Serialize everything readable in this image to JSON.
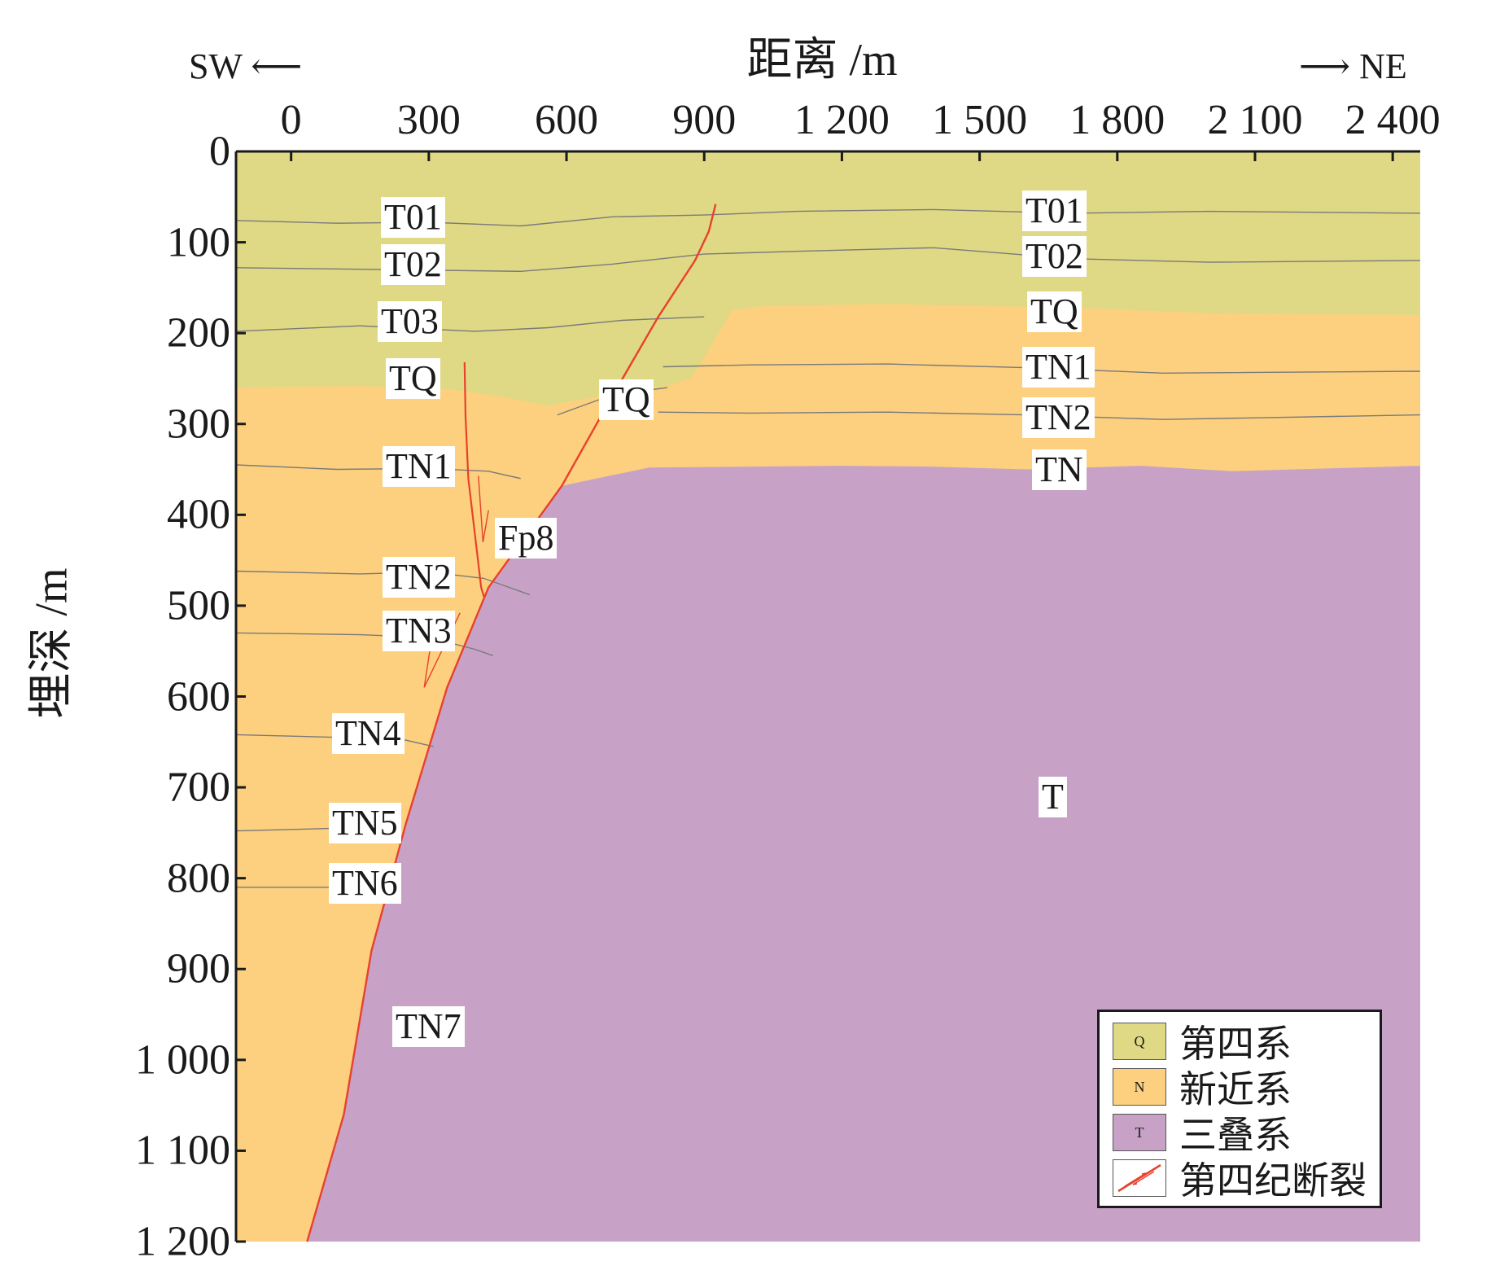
{
  "axes": {
    "x_title": "距离 /m",
    "y_title": "埋深 /m",
    "x_ticks": [
      "0",
      "300",
      "600",
      "900",
      "1 200",
      "1 500",
      "1 800",
      "2 100",
      "2 400"
    ],
    "y_ticks": [
      "0",
      "100",
      "200",
      "300",
      "400",
      "500",
      "600",
      "700",
      "800",
      "900",
      "1 000",
      "1 100",
      "1 200"
    ],
    "xlim": [
      -120,
      2460
    ],
    "ylim": [
      0,
      1200
    ]
  },
  "direction": {
    "left": "SW",
    "right": "NE"
  },
  "colors": {
    "quaternary": "#dfd985",
    "neogene": "#fcd07e",
    "triassic": "#c7a2c6",
    "fault": "#e8412c",
    "horizon": "#7a7a7a"
  },
  "labels": {
    "left": [
      "T01",
      "T02",
      "T03",
      "TQ",
      "TN1",
      "TN2",
      "TN3",
      "TN4",
      "TN5",
      "TN6",
      "TN7"
    ],
    "right": [
      "T01",
      "T02",
      "TQ",
      "TN1",
      "TN2",
      "TN"
    ],
    "center_tq": "TQ",
    "fault": "Fp8",
    "basement": "T"
  },
  "legend": [
    {
      "key": "Q",
      "label": "第四系",
      "color": "#dfd985"
    },
    {
      "key": "N",
      "label": "新近系",
      "color": "#fcd07e"
    },
    {
      "key": "T",
      "label": "三叠系",
      "color": "#c7a2c6"
    },
    {
      "key": "",
      "label": "第四纪断裂",
      "color": "#ffffff"
    }
  ]
}
